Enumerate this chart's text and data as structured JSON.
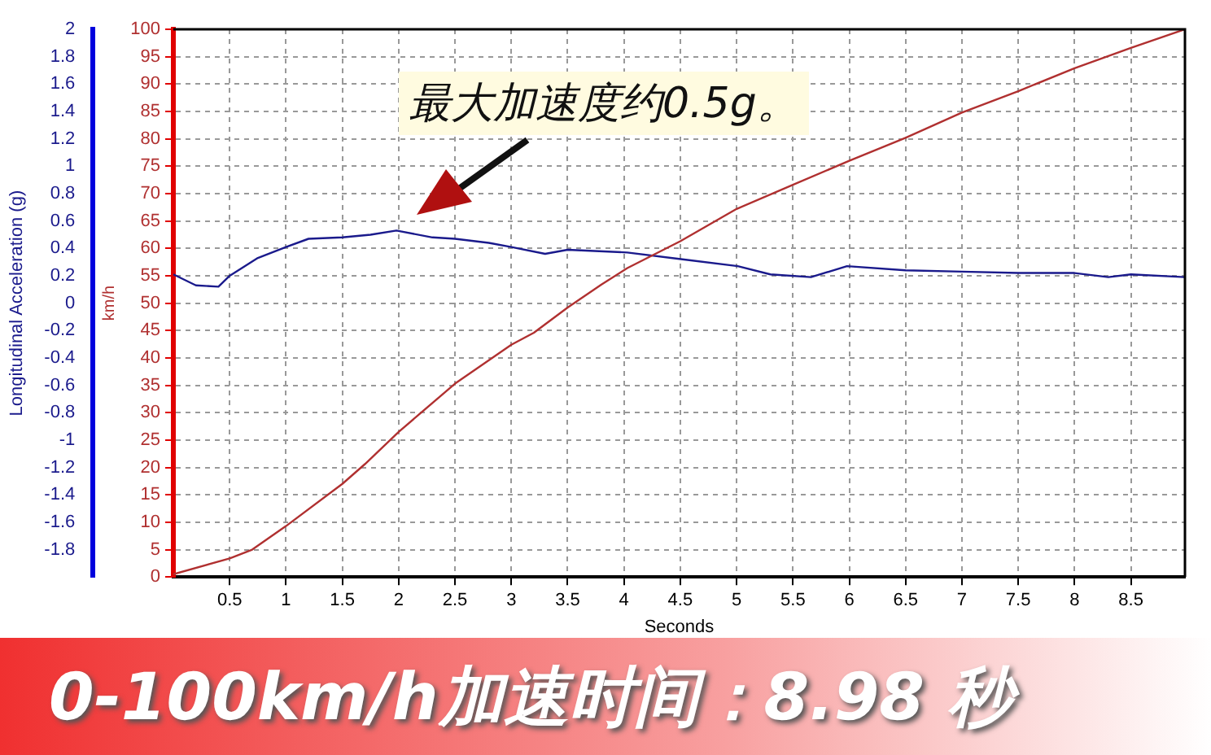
{
  "chart_data": {
    "type": "line",
    "xlabel": "Seconds",
    "ylabel": "km/h",
    "y2label": "Longitudinal Acceleration (g)",
    "annotations": [
      "最大加速度约0.5g。",
      "0-100km/h加速时间：8.98 秒"
    ],
    "xlim": [
      0,
      8.98
    ],
    "xticks": [
      0.5,
      1,
      1.5,
      2,
      2.5,
      3,
      3.5,
      4,
      4.5,
      5,
      5.5,
      6,
      6.5,
      7,
      7.5,
      8,
      8.5
    ],
    "ylim": [
      0,
      100
    ],
    "yticks": [
      0,
      5,
      10,
      15,
      20,
      25,
      30,
      35,
      40,
      45,
      50,
      55,
      60,
      65,
      70,
      75,
      80,
      85,
      90,
      95,
      100
    ],
    "y2lim": [
      -2,
      2
    ],
    "y2ticks": [
      -1.8,
      -1.6,
      -1.4,
      -1.2,
      -1,
      -0.8,
      -0.6,
      -0.4,
      -0.2,
      0,
      0.2,
      0.4,
      0.6,
      0.8,
      1,
      1.2,
      1.4,
      1.6,
      1.8,
      2
    ],
    "grid": true,
    "marker": "none",
    "line_style": "solid",
    "series": [
      {
        "color": "#b03030",
        "x": [
          0,
          0.5,
          0.7,
          1,
          1.5,
          1.7,
          2,
          2.5,
          3,
          3.2,
          3.5,
          3.8,
          4.03,
          4.5,
          5,
          5.5,
          6,
          6.5,
          7,
          7.5,
          8,
          8.5,
          8.98
        ],
        "values": [
          0.5,
          3.4,
          5,
          9.3,
          17,
          20.6,
          26.5,
          35.3,
          42.4,
          44.6,
          49.2,
          53.4,
          56.4,
          61.3,
          67.2,
          71.6,
          76,
          80.2,
          84.8,
          88.7,
          92.9,
          96.6,
          100
        ]
      },
      {
        "color": "#1a1a8c",
        "axis": "y2",
        "x": [
          0,
          0.2,
          0.4,
          0.5,
          0.75,
          1,
          1.2,
          1.5,
          1.75,
          1.98,
          2.3,
          2.5,
          2.8,
          3,
          3.3,
          3.5,
          4.03,
          4.52,
          5.01,
          5.3,
          5.66,
          5.98,
          6.5,
          7,
          7.5,
          8,
          8.3,
          8.5,
          8.98
        ],
        "values": [
          0.21,
          0.13,
          0.12,
          0.2,
          0.33,
          0.41,
          0.47,
          0.48,
          0.5,
          0.53,
          0.48,
          0.47,
          0.44,
          0.41,
          0.36,
          0.39,
          0.37,
          0.32,
          0.27,
          0.21,
          0.19,
          0.27,
          0.24,
          0.23,
          0.22,
          0.22,
          0.19,
          0.21,
          0.19
        ]
      }
    ]
  }
}
